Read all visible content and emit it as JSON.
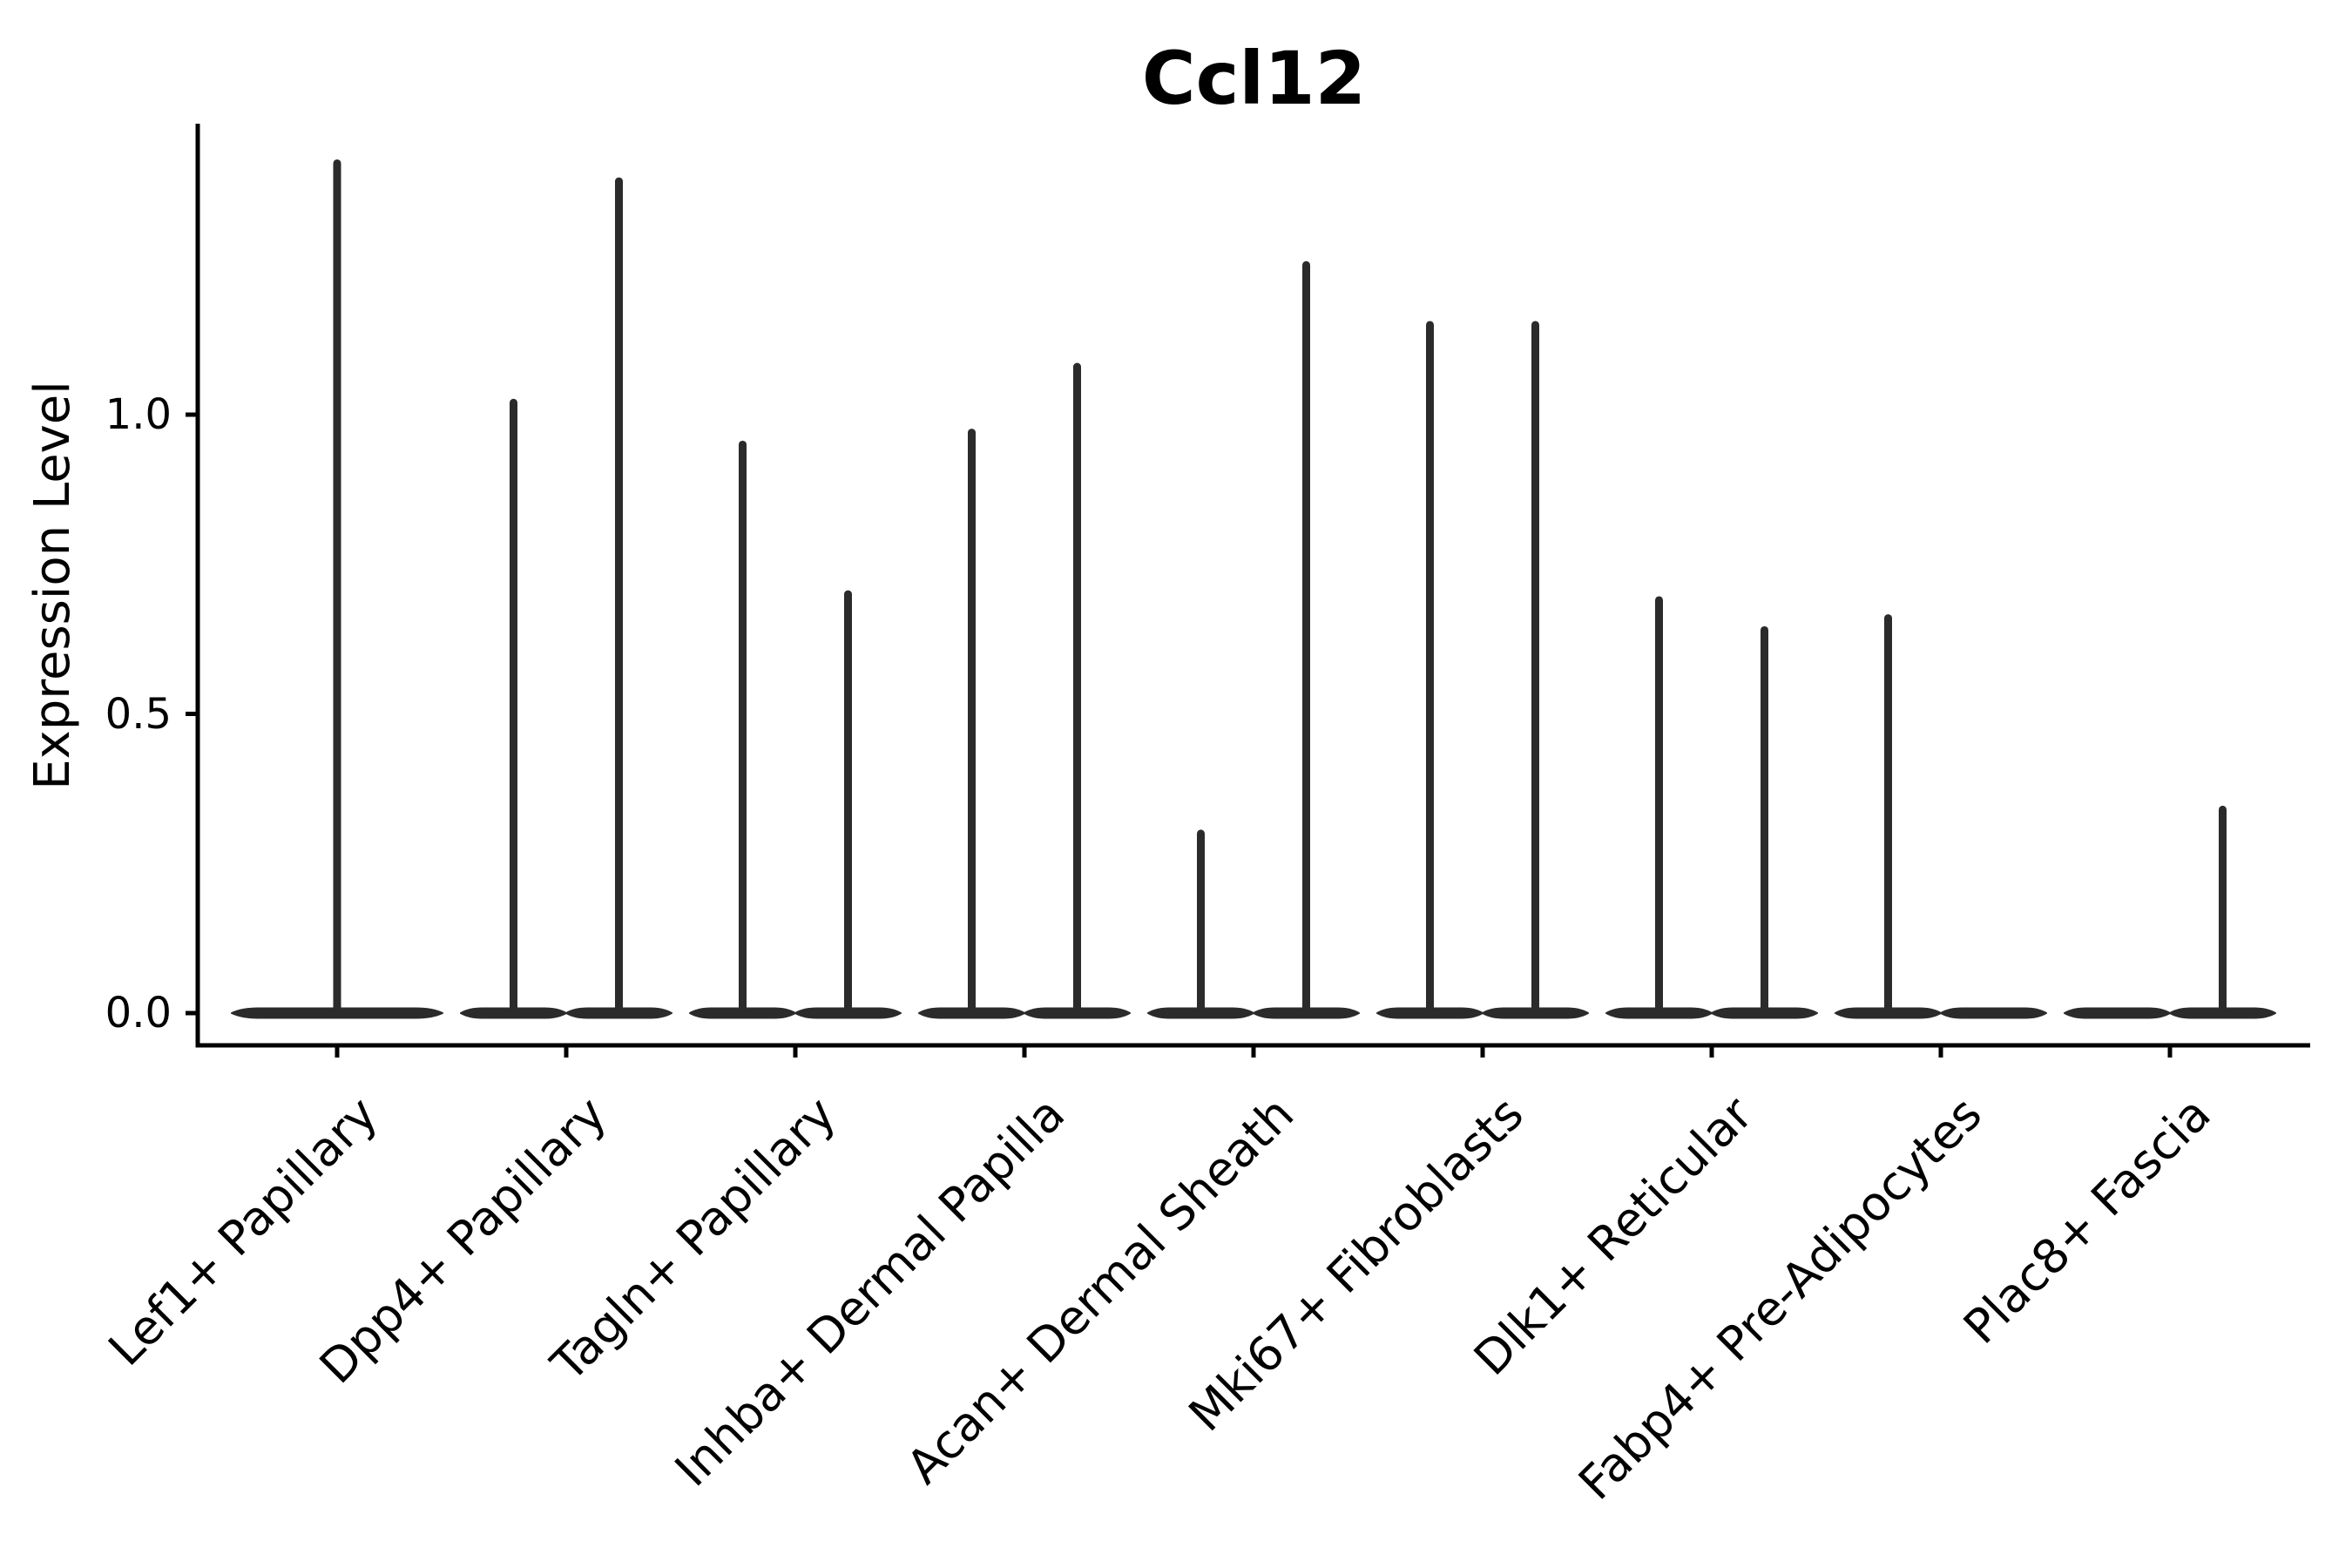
{
  "chart": {
    "title": "Ccl12",
    "ylabel": "Expression Level"
  },
  "chart_data": {
    "type": "violin",
    "title": "Ccl12",
    "xlabel": "",
    "ylabel": "Expression Level",
    "background": "#ffffff",
    "violin_color": "#2b2b2b",
    "axis_color": "#000000",
    "grid": false,
    "legend": false,
    "ylim": [
      -0.055,
      1.49
    ],
    "yticks": [
      {
        "value": 0.0,
        "label": "0.0"
      },
      {
        "value": 0.5,
        "label": "0.5"
      },
      {
        "value": 1.0,
        "label": "1.0"
      }
    ],
    "categories": [
      "Lef1+ Papillary",
      "Dpp4+ Papillary",
      "Tagln+ Papillary",
      "Inhba+ Dermal Papilla",
      "Acan+ Dermal Sheath",
      "Mki67+ Fibroblasts",
      "Dlk1+ Reticular",
      "Fabp4+ Pre-Adipocytes",
      "Plac8+ Fascia"
    ],
    "violins": [
      {
        "category": "Lef1+ Papillary",
        "split": false,
        "group_max_expression": [
          1.42
        ]
      },
      {
        "category": "Dpp4+ Papillary",
        "split": true,
        "group_max_expression": [
          1.02,
          1.39
        ]
      },
      {
        "category": "Tagln+ Papillary",
        "split": true,
        "group_max_expression": [
          0.95,
          0.7
        ]
      },
      {
        "category": "Inhba+ Dermal Papilla",
        "split": true,
        "group_max_expression": [
          0.97,
          1.08
        ]
      },
      {
        "category": "Acan+ Dermal Sheath",
        "split": true,
        "group_max_expression": [
          0.3,
          1.25
        ]
      },
      {
        "category": "Mki67+ Fibroblasts",
        "split": true,
        "group_max_expression": [
          1.15,
          1.15
        ]
      },
      {
        "category": "Dlk1+ Reticular",
        "split": true,
        "group_max_expression": [
          0.69,
          0.64
        ]
      },
      {
        "category": "Fabp4+ Pre-Adipocytes",
        "split": true,
        "group_max_expression": [
          0.66,
          0
        ]
      },
      {
        "category": "Plac8+ Fascia",
        "split": true,
        "group_max_expression": [
          0,
          0.34
        ]
      }
    ]
  }
}
